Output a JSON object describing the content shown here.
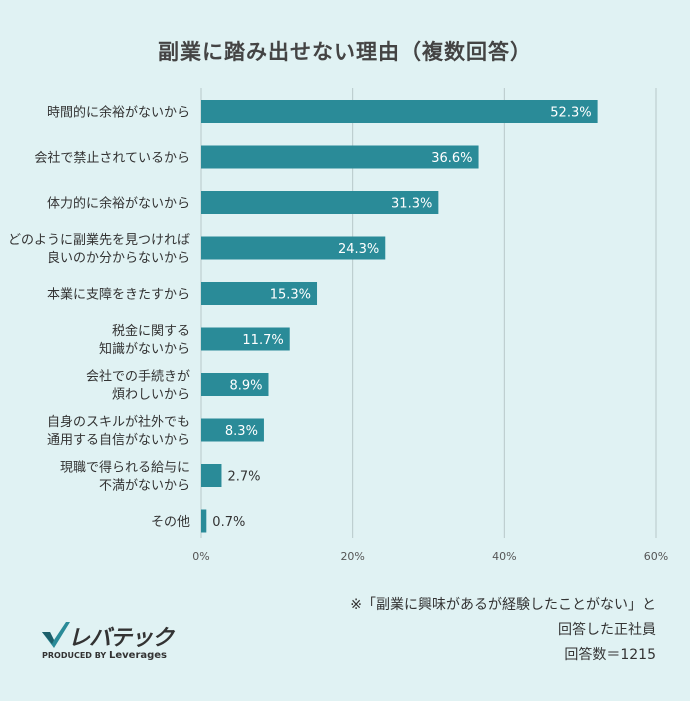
{
  "title": "副業に踏み出せない理由（複数回答）",
  "note": {
    "line1": "※「副業に興味があるが経験したことがない」と",
    "line2": "回答した正社員",
    "line3": "回答数＝1215"
  },
  "logo": {
    "name": "レバテック",
    "produced_by": "PRODUCED BY",
    "brand": "Leverages"
  },
  "colors": {
    "bar": "#2a8b98",
    "grid": "#b8c8c9",
    "background": "#e0f2f3"
  },
  "chart_data": {
    "type": "bar",
    "orientation": "horizontal",
    "categories": [
      [
        "時間的に余裕がないから"
      ],
      [
        "会社で禁止されているから"
      ],
      [
        "体力的に余裕がないから"
      ],
      [
        "どのように副業先を見つければ",
        "良いのか分からないから"
      ],
      [
        "本業に支障をきたすから"
      ],
      [
        "税金に関する",
        "知識がないから"
      ],
      [
        "会社での手続きが",
        "煩わしいから"
      ],
      [
        "自身のスキルが社外でも",
        "通用する自信がないから"
      ],
      [
        "現職で得られる給与に",
        "不満がないから"
      ],
      [
        "その他"
      ]
    ],
    "values": [
      52.3,
      36.6,
      31.3,
      24.3,
      15.3,
      11.7,
      8.9,
      8.3,
      2.7,
      0.7
    ],
    "value_labels": [
      "52.3%",
      "36.6%",
      "31.3%",
      "24.3%",
      "15.3%",
      "11.7%",
      "8.9%",
      "8.3%",
      "2.7%",
      "0.7%"
    ],
    "xlim": [
      0,
      60
    ],
    "x_ticks": [
      0,
      20,
      40,
      60
    ],
    "x_tick_labels": [
      "0%",
      "20%",
      "40%",
      "60%"
    ],
    "grid": true
  }
}
